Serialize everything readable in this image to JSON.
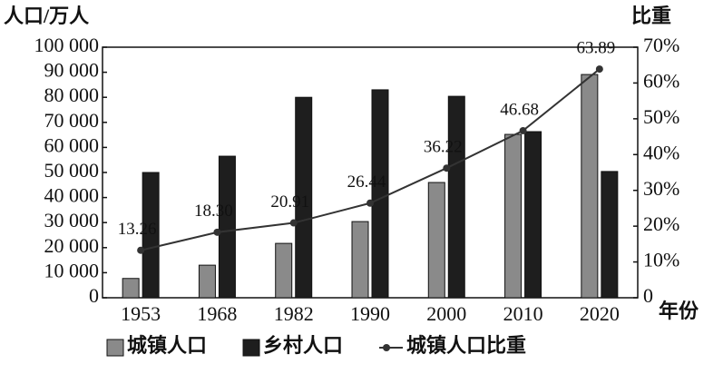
{
  "chart_data": {
    "type": "bar_line",
    "y_label": "人口/万人",
    "y2_label": "比重",
    "x_label": "年份",
    "categories": [
      "1953",
      "1968",
      "1982",
      "1990",
      "2000",
      "2010",
      "2020"
    ],
    "series": [
      {
        "name": "城镇人口",
        "color": "#8a8a8a",
        "values": [
          7700,
          13000,
          21700,
          30400,
          46000,
          65200,
          89100
        ]
      },
      {
        "name": "乡村人口",
        "color": "#1e1e1e",
        "values": [
          50000,
          56500,
          80000,
          83000,
          80400,
          66300,
          50400
        ]
      },
      {
        "name": "城镇人口比重",
        "color": "#333333",
        "axis": "y2",
        "values": [
          13.26,
          18.3,
          20.91,
          26.44,
          36.22,
          46.68,
          63.89
        ],
        "value_labels": [
          "13.26",
          "18.30",
          "20.91",
          "26.44",
          "36.22",
          "46.68",
          "63.89"
        ]
      }
    ],
    "ylim": [
      0,
      100000
    ],
    "yticks": [
      0,
      {
        "value": 10000,
        "label": "10 000"
      },
      {
        "value": 20000,
        "label": "20 000"
      },
      {
        "value": 30000,
        "label": "30 000"
      },
      {
        "value": 40000,
        "label": "40 000"
      },
      {
        "value": 50000,
        "label": "50 000"
      },
      {
        "value": 60000,
        "label": "60 000"
      },
      {
        "value": 70000,
        "label": "70 000"
      },
      {
        "value": 80000,
        "label": "80 000"
      },
      {
        "value": 90000,
        "label": "90 000"
      },
      {
        "value": 100000,
        "label": "100 000"
      }
    ],
    "y2lim": [
      0,
      70
    ],
    "y2ticks": [
      0,
      {
        "value": 10,
        "label": "10%"
      },
      {
        "value": 20,
        "label": "20%"
      },
      {
        "value": 30,
        "label": "30%"
      },
      {
        "value": 40,
        "label": "40%"
      },
      {
        "value": 50,
        "label": "50%"
      },
      {
        "value": 60,
        "label": "60%"
      },
      {
        "value": 70,
        "label": "70%"
      }
    ]
  }
}
